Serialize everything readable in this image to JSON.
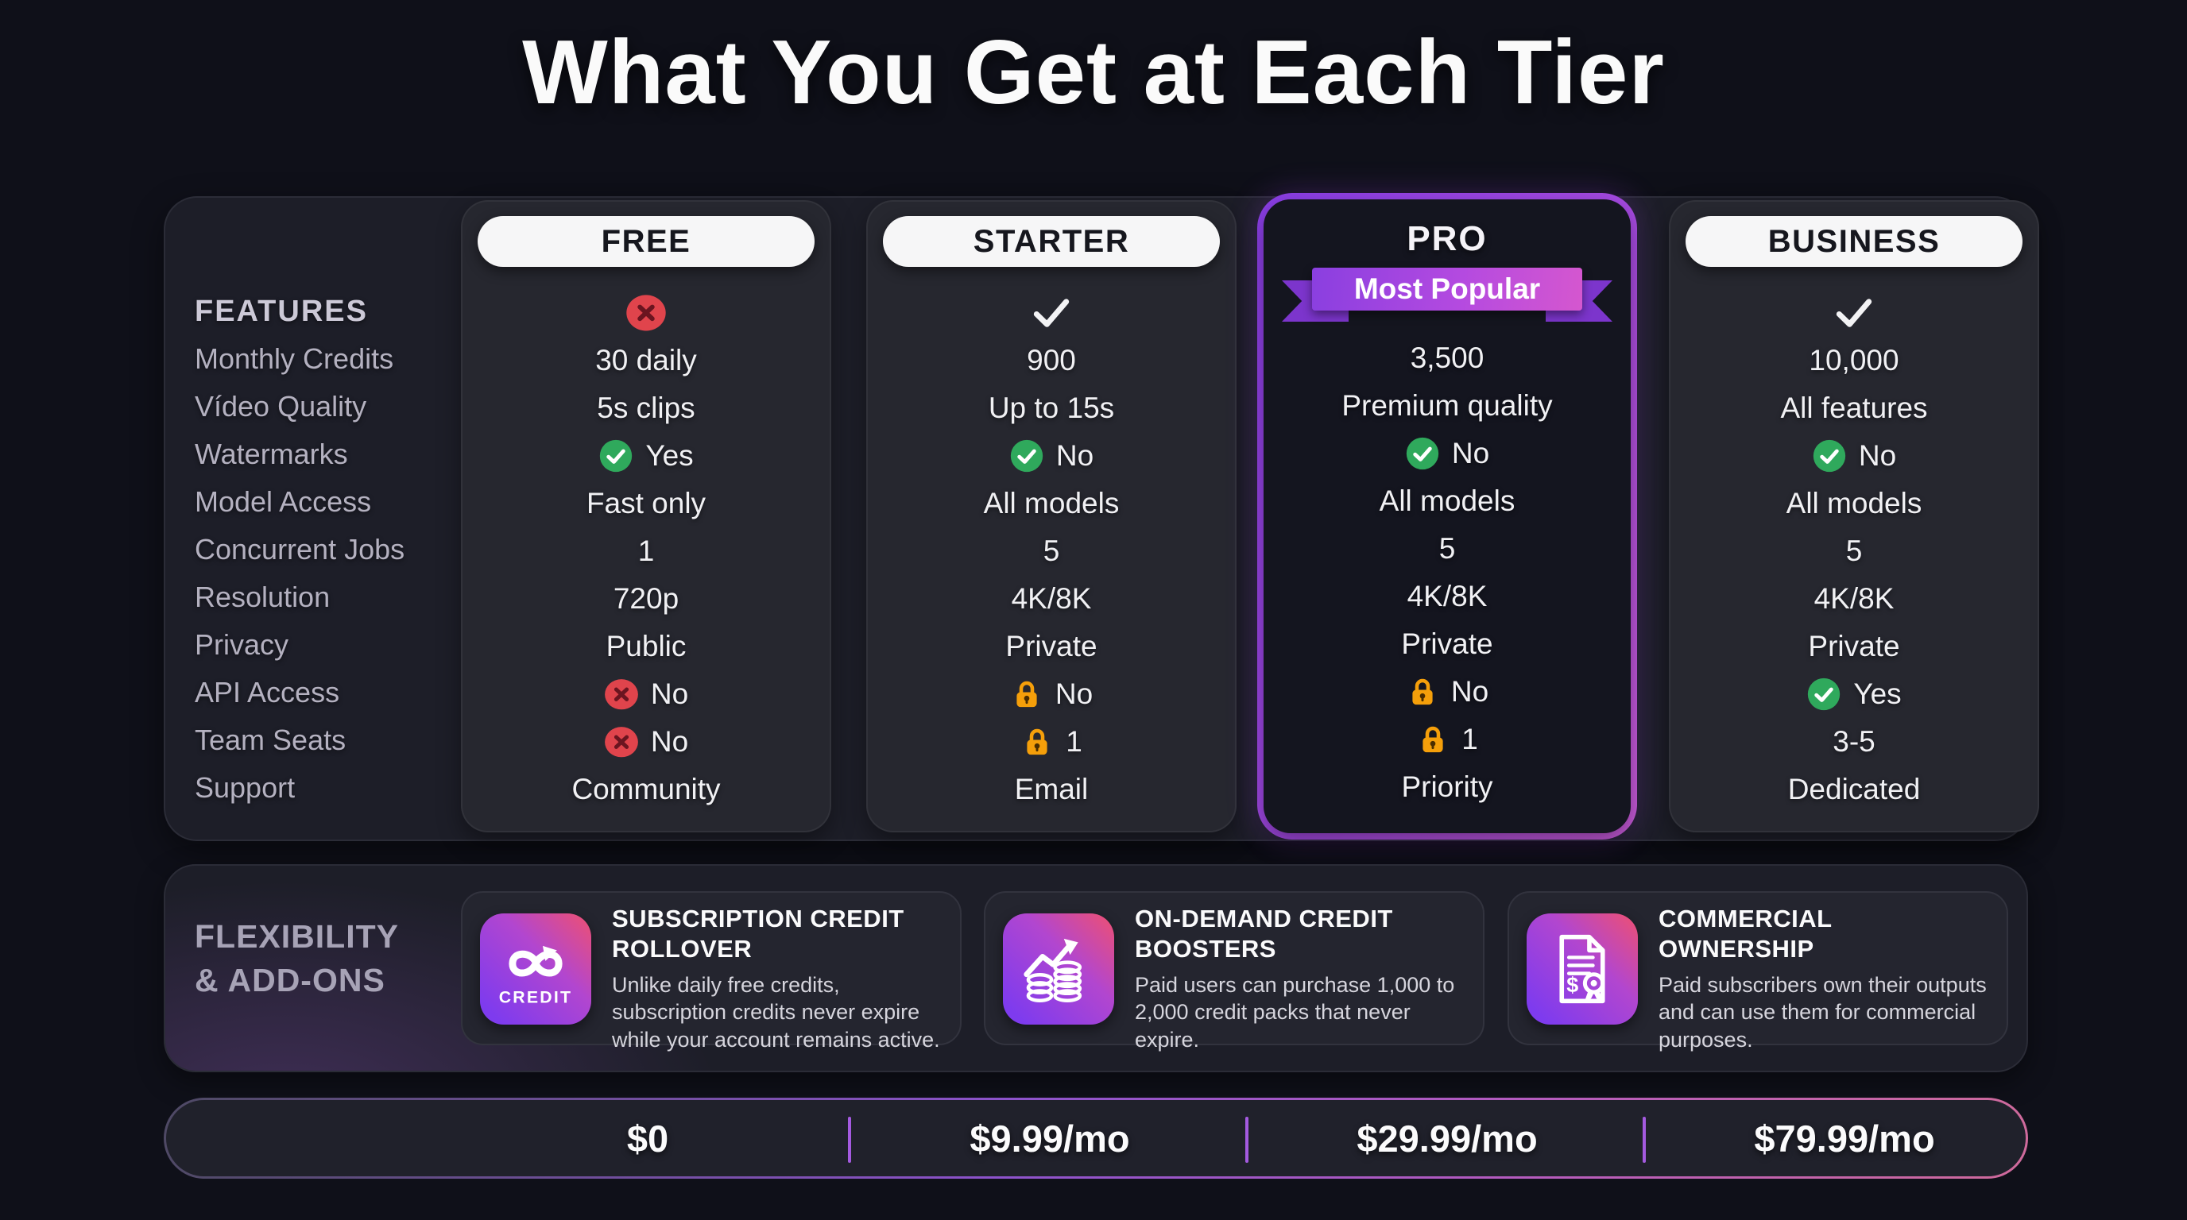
{
  "title": "What You Get at Each Tier",
  "features_header": "FEATURES",
  "features": [
    "Monthly Credits",
    "Vídeo Quality",
    "Watermarks",
    "Model Access",
    "Concurrent Jobs",
    "Resolution",
    "Privacy",
    "API Access",
    "Team Seats",
    "Support"
  ],
  "tiers": [
    {
      "name": "FREE",
      "top_icon": "x-circle",
      "badge": "",
      "highlighted": false,
      "values": [
        {
          "icon": "none",
          "text": "30 daily"
        },
        {
          "icon": "none",
          "text": "5s clips"
        },
        {
          "icon": "check-circle",
          "text": "Yes"
        },
        {
          "icon": "none",
          "text": "Fast only"
        },
        {
          "icon": "none",
          "text": "1"
        },
        {
          "icon": "none",
          "text": "720p"
        },
        {
          "icon": "none",
          "text": "Public"
        },
        {
          "icon": "x-circle",
          "text": "No"
        },
        {
          "icon": "x-circle",
          "text": "No"
        },
        {
          "icon": "none",
          "text": "Community"
        }
      ],
      "price": "$0"
    },
    {
      "name": "STARTER",
      "top_icon": "check-plain",
      "badge": "",
      "highlighted": false,
      "values": [
        {
          "icon": "none",
          "text": "900"
        },
        {
          "icon": "none",
          "text": "Up to 15s"
        },
        {
          "icon": "check-circle",
          "text": "No"
        },
        {
          "icon": "none",
          "text": "All models"
        },
        {
          "icon": "none",
          "text": "5"
        },
        {
          "icon": "none",
          "text": "4K/8K"
        },
        {
          "icon": "none",
          "text": "Private"
        },
        {
          "icon": "lock",
          "text": "No"
        },
        {
          "icon": "lock",
          "text": "1"
        },
        {
          "icon": "none",
          "text": "Email"
        }
      ],
      "price": "$9.99/mo"
    },
    {
      "name": "PRO",
      "top_icon": "ribbon",
      "badge": "Most Popular",
      "highlighted": true,
      "values": [
        {
          "icon": "none",
          "text": "3,500"
        },
        {
          "icon": "none",
          "text": "Premium quality"
        },
        {
          "icon": "check-circle",
          "text": "No"
        },
        {
          "icon": "none",
          "text": "All models"
        },
        {
          "icon": "none",
          "text": "5"
        },
        {
          "icon": "none",
          "text": "4K/8K"
        },
        {
          "icon": "none",
          "text": "Private"
        },
        {
          "icon": "lock",
          "text": "No"
        },
        {
          "icon": "lock",
          "text": "1"
        },
        {
          "icon": "none",
          "text": "Priority"
        }
      ],
      "price": "$29.99/mo"
    },
    {
      "name": "BUSINESS",
      "top_icon": "check-plain",
      "badge": "",
      "highlighted": false,
      "values": [
        {
          "icon": "none",
          "text": "10,000"
        },
        {
          "icon": "none",
          "text": "All features"
        },
        {
          "icon": "check-circle",
          "text": "No"
        },
        {
          "icon": "none",
          "text": "All models"
        },
        {
          "icon": "none",
          "text": "5"
        },
        {
          "icon": "none",
          "text": "4K/8K"
        },
        {
          "icon": "none",
          "text": "Private"
        },
        {
          "icon": "check-circle",
          "text": "Yes"
        },
        {
          "icon": "none",
          "text": "3-5"
        },
        {
          "icon": "none",
          "text": "Dedicated"
        }
      ],
      "price": "$79.99/mo"
    }
  ],
  "addons": {
    "header_line1": "FLEXIBILITY",
    "header_line2": "& ADD-ONS",
    "cards": [
      {
        "icon": "credit-rollover-icon",
        "icon_label": "CREDIT",
        "title": "SUBSCRIPTION CREDIT ROLLOVER",
        "body": "Unlike daily free credits, subscription credits never expire while your account remains active."
      },
      {
        "icon": "credit-boosters-icon",
        "icon_label": "",
        "title": "ON-DEMAND CREDIT BOOSTERS",
        "body": "Paid users can purchase 1,000 to 2,000 credit packs that never expire."
      },
      {
        "icon": "commercial-ownership-icon",
        "icon_label": "",
        "title": "COMMERCIAL OWNERSHIP",
        "body": "Paid subscribers own their outputs and can use them for commercial purposes."
      }
    ]
  },
  "prices": [
    "$0",
    "$9.99/mo",
    "$29.99/mo",
    "$79.99/mo"
  ],
  "colors": {
    "green": "#2fa95c",
    "red": "#e0444c",
    "red_x_stroke": "#6b1520",
    "orange": "#f59f0a",
    "keyhole": "#4a2d00",
    "white_check": "#f3f3f5",
    "accent_purple": "#a45ae0"
  }
}
